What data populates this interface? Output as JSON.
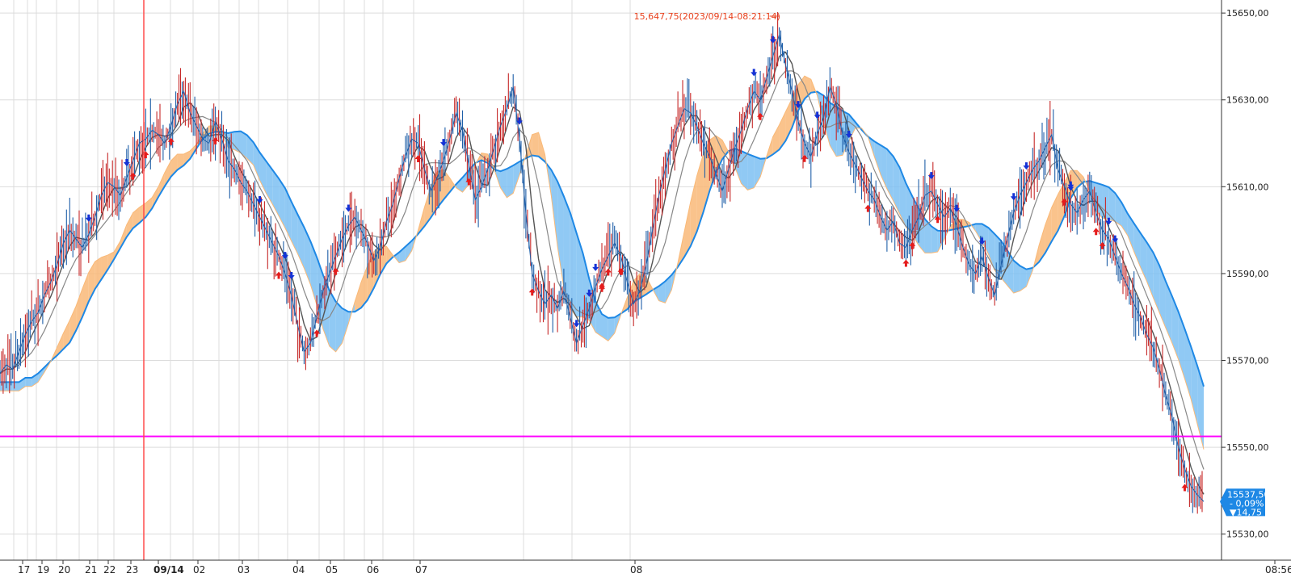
{
  "chart_data": {
    "type": "line",
    "title": "",
    "x_tick_labels": [
      "17",
      "19",
      "20",
      "21",
      "22",
      "23",
      "09/14",
      "02",
      "03",
      "04",
      "05",
      "06",
      "07",
      "08",
      "08:56"
    ],
    "y_ticks": [
      15530,
      15550,
      15570,
      15590,
      15610,
      15630,
      15650
    ],
    "y_tick_labels": [
      "15530,00",
      "15550,00",
      "15570,00",
      "15590,00",
      "15610,00",
      "15630,00",
      "15650,00"
    ],
    "ylim": [
      15524,
      15653
    ],
    "grid": true,
    "horizontal_line": 15552.5,
    "high_annotation": "15,647,75(2023/09/14-08:21:14)",
    "high_value": 15647.75,
    "current_price": "15537,50",
    "current_change_pct": "- 0,09%",
    "current_change_pts": "▼14,75",
    "last_value": 15537.5,
    "colors": {
      "bull_cloud": "#f9b978",
      "bear_cloud": "#7cc0f2",
      "leading_span": "#1e88e5",
      "price_line": "#1f5fa8",
      "candle_red": "#c62828",
      "conversion_line": "#555555",
      "hline": "#ff00ff",
      "vline": "#ff4d4d",
      "tag_bg": "#1e88e5",
      "buy_arrow": "#e51c1c",
      "sell_arrow": "#1432d6"
    },
    "series": [
      {
        "values": [
          15567,
          15569,
          15568,
          15572,
          15576,
          15579,
          15581,
          15585,
          15588,
          15592,
          15597,
          15600,
          15598,
          15596,
          15599,
          15603,
          15608,
          15611,
          15610,
          15608,
          15612,
          15616,
          15620,
          15621,
          15623,
          15622,
          15620,
          15624,
          15629,
          15632,
          15627,
          15624,
          15621,
          15620,
          15625,
          15621,
          15616,
          15614,
          15611,
          15609,
          15606,
          15603,
          15600,
          15597,
          15594,
          15590,
          15585,
          15578,
          15572,
          15574,
          15580,
          15586,
          15590,
          15594,
          15598,
          15601,
          15603,
          15600,
          15597,
          15593,
          15596,
          15602,
          15606,
          15612,
          15617,
          15621,
          15620,
          15614,
          15609,
          15612,
          15616,
          15621,
          15627,
          15623,
          15615,
          15607,
          15610,
          15614,
          15619,
          15624,
          15628,
          15633,
          15621,
          15604,
          15590,
          15586,
          15583,
          15585,
          15582,
          15586,
          15580,
          15574,
          15578,
          15582,
          15587,
          15591,
          15594,
          15597,
          15594,
          15588,
          15583,
          15586,
          15592,
          15600,
          15608,
          15614,
          15620,
          15624,
          15628,
          15627,
          15624,
          15620,
          15617,
          15613,
          15609,
          15614,
          15619,
          15623,
          15628,
          15632,
          15630,
          15635,
          15640,
          15645,
          15638,
          15632,
          15625,
          15620,
          15617,
          15622,
          15626,
          15633,
          15629,
          15622,
          15618,
          15615,
          15612,
          15609,
          15607,
          15603,
          15600,
          15602,
          15597,
          15596,
          15600,
          15603,
          15608,
          15609,
          15606,
          15603,
          15605,
          15601,
          15596,
          15592,
          15590,
          15594,
          15589,
          15585,
          15592,
          15598,
          15604,
          15608,
          15611,
          15614,
          15616,
          15619,
          15622,
          15614,
          15610,
          15606,
          15604,
          15607,
          15609,
          15604,
          15600,
          15598,
          15594,
          15590,
          15587,
          15583,
          15580,
          15576,
          15573,
          15568,
          15562,
          15557,
          15550,
          15545,
          15541,
          15539,
          15537.5
        ]
      }
    ],
    "buy_signals": 25,
    "sell_signals": 25
  }
}
